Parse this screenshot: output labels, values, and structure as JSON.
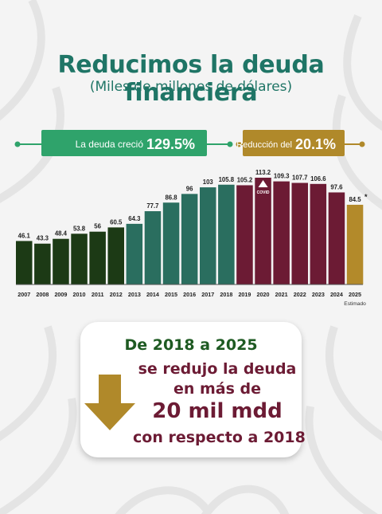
{
  "header": {
    "title": "Reducimos la deuda financiera",
    "subtitle": "(Miles de millones de dólares)"
  },
  "badges": {
    "growth_text": "La deuda creció",
    "growth_value": "129.5%",
    "reduction_text": "Reducción del",
    "reduction_value": "20.1%"
  },
  "callout": {
    "line1": "De 2018 a 2025",
    "line2": "se redujo la deuda",
    "line3": "en más de",
    "line4": "20 mil mdd",
    "line5": "con respecto a 2018"
  },
  "colors": {
    "dark_green": "#1c3a15",
    "teal": "#2a6e5f",
    "maroon": "#6c1b34",
    "gold": "#b38a2a",
    "badge_green": "#2fa36b",
    "badge_gold": "#b0892a"
  },
  "chart_data": {
    "type": "bar",
    "categories": [
      "2007",
      "2008",
      "2009",
      "2010",
      "2011",
      "2012",
      "2013",
      "2014",
      "2015",
      "2016",
      "2017",
      "2018",
      "2019",
      "2020",
      "2021",
      "2022",
      "2023",
      "2024",
      "2025"
    ],
    "values": [
      46.1,
      43.3,
      48.4,
      53.8,
      56,
      60.5,
      64.3,
      77.7,
      86.8,
      96,
      103,
      105.8,
      105.2,
      113.2,
      109.3,
      107.7,
      106.6,
      97.6,
      84.5
    ],
    "value_labels": [
      "46.1",
      "43.3",
      "48.4",
      "53.8",
      "56",
      "60.5",
      "64.3",
      "77.7",
      "86.8",
      "96",
      "103",
      "105.8",
      "105.2",
      "113.2",
      "109.3",
      "107.7",
      "106.6",
      "97.6",
      "84.5"
    ],
    "bar_colors": [
      "#1c3a15",
      "#1c3a15",
      "#1c3a15",
      "#1c3a15",
      "#1c3a15",
      "#1c3a15",
      "#2a6e5f",
      "#2a6e5f",
      "#2a6e5f",
      "#2a6e5f",
      "#2a6e5f",
      "#2a6e5f",
      "#6c1b34",
      "#6c1b34",
      "#6c1b34",
      "#6c1b34",
      "#6c1b34",
      "#6c1b34",
      "#b38a2a"
    ],
    "annotations": {
      "covid_year": "2020",
      "covid_label": "COVID",
      "estimate_year": "2025",
      "estimate_mark": "*",
      "estimate_note": "Estimado"
    },
    "title": "",
    "xlabel": "",
    "ylabel": "",
    "ylim": [
      0,
      120
    ]
  }
}
